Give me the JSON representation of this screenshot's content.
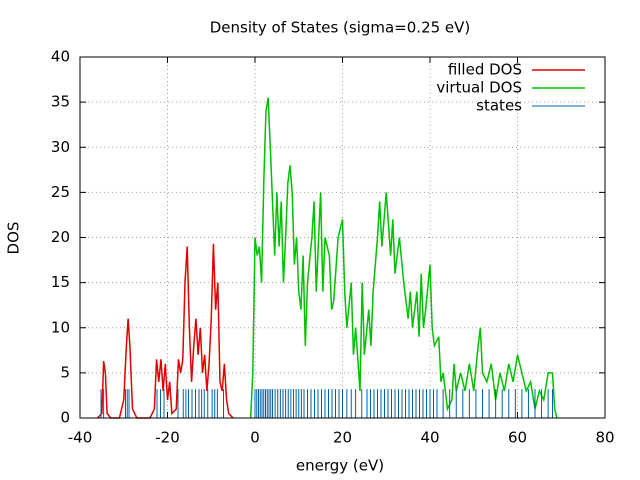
{
  "chart_data": {
    "type": "line",
    "title": "Density of States (sigma=0.25 eV)",
    "x_label": "energy (eV)",
    "y_label": "DOS",
    "xlim": [
      -40,
      80
    ],
    "xticks": [
      -40,
      -20,
      0,
      20,
      40,
      60,
      80
    ],
    "ylim": [
      0,
      40
    ],
    "yticks": [
      0,
      5,
      10,
      15,
      20,
      25,
      30,
      35,
      40
    ],
    "grid": true,
    "legend": "top right",
    "series": [
      {
        "name": "filled DOS",
        "color": "#e00000",
        "style": "lines",
        "x": [
          -36,
          -35,
          -34.6,
          -34.2,
          -33.8,
          -33,
          -31,
          -30,
          -29.4,
          -29,
          -28.6,
          -28,
          -27,
          -24,
          -23,
          -22.5,
          -22,
          -21.5,
          -21,
          -20.5,
          -20,
          -19.5,
          -19,
          -18,
          -17.5,
          -17,
          -16.5,
          -16,
          -15.5,
          -15,
          -14.5,
          -14,
          -13.5,
          -13,
          -12.5,
          -12,
          -11.5,
          -11,
          -10.5,
          -10,
          -9.5,
          -9,
          -8.5,
          -8,
          -7.5,
          -7,
          -6.5,
          -6,
          -5
        ],
        "values": [
          0,
          0.5,
          6.3,
          5,
          0.5,
          0,
          0,
          2,
          8,
          11,
          8,
          1,
          0,
          0,
          1,
          6.5,
          4,
          6.5,
          3,
          6,
          2,
          4,
          0.5,
          1,
          6.5,
          5,
          6.5,
          15,
          19,
          10,
          4,
          8,
          11,
          7,
          10,
          5,
          7,
          3,
          6,
          11,
          19.3,
          12,
          15,
          4,
          3,
          6,
          2,
          0.5,
          0
        ]
      },
      {
        "name": "virtual DOS",
        "color": "#00c000",
        "style": "lines",
        "x": [
          -1,
          -0.5,
          0,
          0.5,
          1,
          1.5,
          2,
          2.5,
          3,
          3.5,
          4,
          4.5,
          5,
          5.5,
          6,
          6.5,
          7,
          7.5,
          8,
          8.5,
          9,
          9.5,
          10,
          10.5,
          11,
          11.5,
          12,
          13,
          13.5,
          14,
          15,
          15.5,
          16,
          17,
          17.5,
          18,
          19,
          20,
          20.5,
          21,
          22,
          22.5,
          23,
          24,
          24.5,
          25,
          26,
          26.5,
          27,
          28,
          28.5,
          29,
          30,
          31,
          31.5,
          32,
          33,
          34,
          35,
          35.5,
          36,
          37,
          37.5,
          38,
          38.5,
          39,
          40,
          40.5,
          41,
          42,
          42.5,
          43,
          44,
          45,
          45.5,
          46,
          47,
          48,
          49,
          50,
          51,
          51.5,
          52,
          53,
          54,
          55,
          56,
          57,
          58,
          59,
          60,
          61,
          62,
          63,
          64,
          65,
          66,
          67,
          68,
          68.5,
          69
        ],
        "values": [
          0,
          5,
          20,
          18,
          19,
          15,
          26,
          34,
          35.5,
          30,
          24,
          18,
          25,
          19,
          24,
          15,
          20,
          26,
          28,
          25,
          17,
          20,
          14,
          12,
          18,
          8,
          15,
          20,
          24,
          14,
          25,
          14,
          20,
          18,
          12,
          13,
          20,
          22,
          14,
          10,
          15,
          7,
          10,
          3,
          15,
          7,
          12,
          8,
          14,
          20,
          24,
          19,
          25,
          18,
          22,
          16,
          20,
          15,
          11,
          14,
          10,
          14,
          9,
          16,
          10,
          12,
          17,
          10,
          8,
          9,
          4,
          5,
          1,
          2,
          6,
          3,
          5,
          3,
          6,
          3,
          8,
          10,
          5,
          4,
          6,
          2,
          5,
          3,
          6,
          4,
          7,
          5,
          3,
          4,
          1,
          3,
          2,
          5,
          5,
          1,
          0
        ]
      },
      {
        "name": "states",
        "color": "#0060ad",
        "style": "impulses",
        "x": [
          -35.2,
          -34.6,
          -29.6,
          -29.2,
          -28.8,
          -22.4,
          -21.6,
          -20.8,
          -17.6,
          -16.4,
          -15.8,
          -15.2,
          -14.4,
          -13.6,
          -12.8,
          -12.2,
          -11.6,
          -10.8,
          -9.8,
          -9.2,
          -8.6,
          -7.2,
          0,
          0.4,
          0.8,
          1.2,
          1.6,
          2,
          2.4,
          2.8,
          3.2,
          3.6,
          4,
          4.6,
          5.2,
          5.8,
          6.4,
          7,
          7.6,
          8.2,
          8.8,
          9.4,
          10,
          10.6,
          11.2,
          12,
          12.8,
          13.6,
          14.4,
          15.2,
          16,
          16.8,
          17.6,
          18.4,
          19.2,
          20,
          21,
          22,
          23,
          24.4,
          25.6,
          26.4,
          27.2,
          28,
          28.8,
          29.6,
          30.4,
          31.2,
          32,
          32.8,
          33.6,
          34.4,
          35.2,
          36,
          36.8,
          37.6,
          38.4,
          39.2,
          40,
          40.8,
          41.6,
          43,
          44.5,
          46,
          47.5,
          49,
          50.5,
          52,
          53.5,
          55,
          56.5,
          58,
          59.5,
          61,
          62.5,
          64,
          65.5,
          67,
          68
        ],
        "values": [
          3.2,
          3.2,
          3.2,
          3.2,
          3.2,
          3.2,
          3.2,
          3.2,
          3.2,
          3.2,
          3.2,
          3.2,
          3.2,
          3.2,
          3.2,
          3.2,
          3.2,
          3.2,
          3.2,
          3.2,
          3.2,
          3.2,
          3.2,
          3.2,
          3.2,
          3.2,
          3.2,
          3.2,
          3.2,
          3.2,
          3.2,
          3.2,
          3.2,
          3.2,
          3.2,
          3.2,
          3.2,
          3.2,
          3.2,
          3.2,
          3.2,
          3.2,
          3.2,
          3.2,
          3.2,
          3.2,
          3.2,
          3.2,
          3.2,
          3.2,
          3.2,
          3.2,
          3.2,
          3.2,
          3.2,
          3.2,
          3.2,
          3.2,
          3.2,
          3.2,
          3.2,
          3.2,
          3.2,
          3.2,
          3.2,
          3.2,
          3.2,
          3.2,
          3.2,
          3.2,
          3.2,
          3.2,
          3.2,
          3.2,
          3.2,
          3.2,
          3.2,
          3.2,
          3.2,
          3.2,
          3.2,
          3.2,
          3.2,
          3.2,
          3.2,
          3.2,
          3.2,
          3.2,
          3.2,
          3.2,
          3.2,
          3.2,
          3.2,
          3.2,
          3.2,
          3.2,
          3.2,
          3.2,
          3.2
        ]
      }
    ]
  }
}
